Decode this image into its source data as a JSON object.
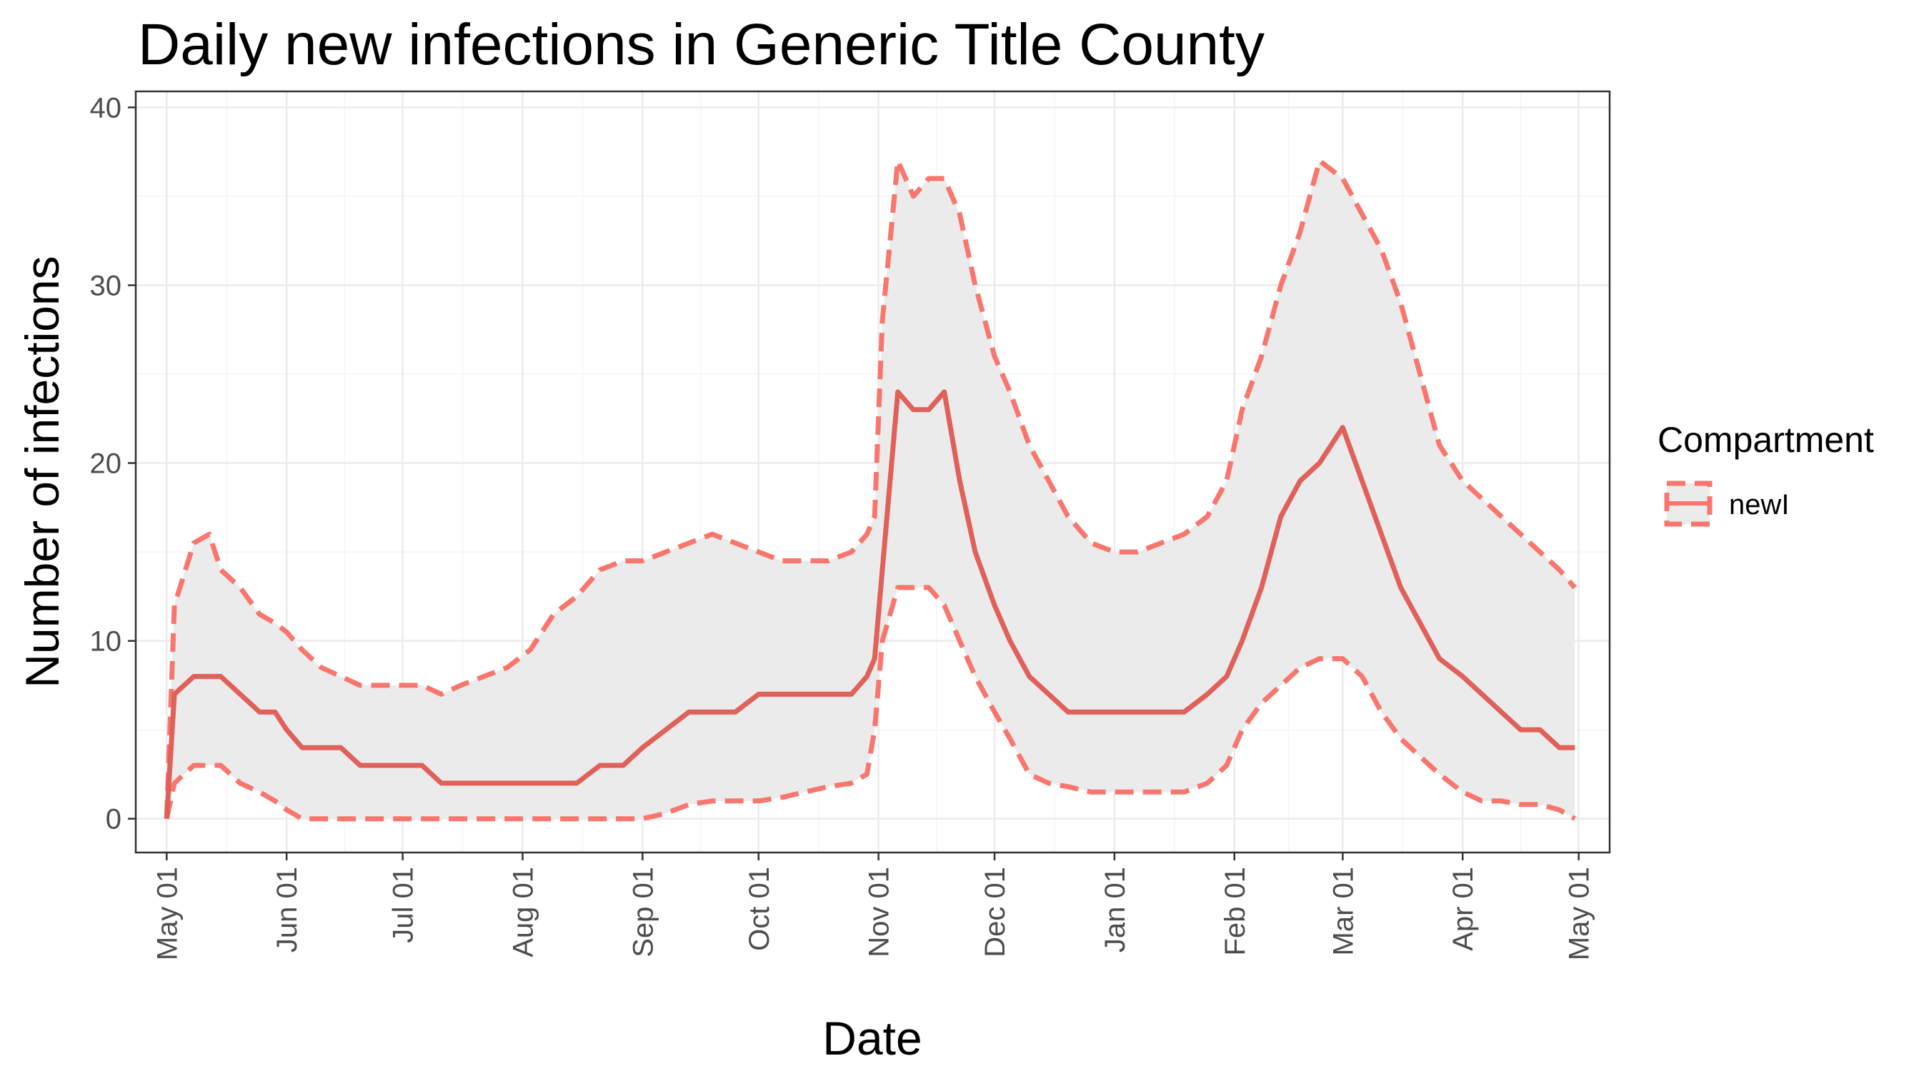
{
  "chart_data": {
    "type": "line",
    "title": "Daily new infections in Generic Title County",
    "xlabel": "Date",
    "ylabel": "Number of infections",
    "x_ticks": [
      "May 01",
      "Jun 01",
      "Jul 01",
      "Aug 01",
      "Sep 01",
      "Oct 01",
      "Nov 01",
      "Dec 01",
      "Jan 01",
      "Feb 01",
      "Mar 01",
      "Apr 01",
      "May 01"
    ],
    "y_ticks": [
      0,
      10,
      20,
      30,
      40
    ],
    "xlim": [
      "2020-04-23",
      "2021-05-09"
    ],
    "ylim": [
      -1.9,
      40.9
    ],
    "grid": true,
    "legend": {
      "title": "Compartment",
      "position": "right",
      "entries": [
        "newI"
      ]
    },
    "colors": {
      "series": "#f8766d",
      "ribbon": "#ebebeb",
      "grid_major": "#ebebeb",
      "grid_minor": "#f5f5f5",
      "panel_border": "#333333"
    },
    "series": [
      {
        "name": "newI",
        "x": [
          "2020-05-01",
          "2020-05-03",
          "2020-05-08",
          "2020-05-12",
          "2020-05-15",
          "2020-05-20",
          "2020-05-25",
          "2020-05-29",
          "2020-06-01",
          "2020-06-05",
          "2020-06-10",
          "2020-06-15",
          "2020-06-20",
          "2020-06-25",
          "2020-07-01",
          "2020-07-06",
          "2020-07-11",
          "2020-07-16",
          "2020-07-22",
          "2020-07-28",
          "2020-08-03",
          "2020-08-09",
          "2020-08-15",
          "2020-08-21",
          "2020-08-27",
          "2020-09-01",
          "2020-09-07",
          "2020-09-13",
          "2020-09-19",
          "2020-09-25",
          "2020-10-01",
          "2020-10-07",
          "2020-10-13",
          "2020-10-19",
          "2020-10-25",
          "2020-10-29",
          "2020-10-31",
          "2020-11-02",
          "2020-11-06",
          "2020-11-10",
          "2020-11-14",
          "2020-11-18",
          "2020-11-22",
          "2020-11-26",
          "2020-12-01",
          "2020-12-05",
          "2020-12-10",
          "2020-12-15",
          "2020-12-20",
          "2020-12-26",
          "2021-01-01",
          "2021-01-07",
          "2021-01-13",
          "2021-01-19",
          "2021-01-25",
          "2021-01-30",
          "2021-02-03",
          "2021-02-08",
          "2021-02-13",
          "2021-02-18",
          "2021-02-23",
          "2021-03-01",
          "2021-03-06",
          "2021-03-11",
          "2021-03-16",
          "2021-03-21",
          "2021-03-26",
          "2021-04-01",
          "2021-04-06",
          "2021-04-11",
          "2021-04-16",
          "2021-04-21",
          "2021-04-26",
          "2021-04-30"
        ],
        "median": [
          0,
          7,
          8,
          8,
          8,
          7,
          6,
          6,
          5,
          4,
          4,
          4,
          3,
          3,
          3,
          3,
          2,
          2,
          2,
          2,
          2,
          2,
          2,
          3,
          3,
          4,
          5,
          6,
          6,
          6,
          7,
          7,
          7,
          7,
          7,
          8,
          9,
          14,
          24,
          23,
          23,
          24,
          19,
          15,
          12,
          10,
          8,
          7,
          6,
          6,
          6,
          6,
          6,
          6,
          7,
          8,
          10,
          13,
          17,
          19,
          20,
          22,
          19,
          16,
          13,
          11,
          9,
          8,
          7,
          6,
          5,
          5,
          4,
          4
        ],
        "lower": [
          0,
          2,
          3,
          3,
          3,
          2,
          1.5,
          1,
          0.5,
          0,
          0,
          0,
          0,
          0,
          0,
          0,
          0,
          0,
          0,
          0,
          0,
          0,
          0,
          0,
          0,
          0,
          0.3,
          0.8,
          1,
          1,
          1,
          1.2,
          1.5,
          1.8,
          2,
          2.5,
          5,
          10,
          13,
          13,
          13,
          12,
          10,
          8,
          6,
          4.5,
          2.5,
          2,
          1.8,
          1.5,
          1.5,
          1.5,
          1.5,
          1.5,
          2,
          3,
          5,
          6.5,
          7.5,
          8.5,
          9,
          9,
          8,
          6,
          4.5,
          3.5,
          2.5,
          1.5,
          1,
          1,
          0.8,
          0.8,
          0.5,
          0
        ],
        "upper": [
          0,
          12,
          15.5,
          16,
          14,
          13,
          11.5,
          11,
          10.5,
          9.5,
          8.5,
          8,
          7.5,
          7.5,
          7.5,
          7.5,
          7,
          7.5,
          8,
          8.5,
          9.5,
          11.5,
          12.5,
          14,
          14.5,
          14.5,
          15,
          15.5,
          16,
          15.5,
          15,
          14.5,
          14.5,
          14.5,
          15,
          16,
          17,
          28,
          37,
          35,
          36,
          36,
          34,
          30,
          26,
          24,
          21,
          19,
          17,
          15.5,
          15,
          15,
          15.5,
          16,
          17,
          19,
          23,
          26,
          30,
          33,
          37,
          36,
          34,
          32,
          29,
          25,
          21,
          19,
          18,
          17,
          16,
          15,
          14,
          13
        ]
      }
    ]
  }
}
